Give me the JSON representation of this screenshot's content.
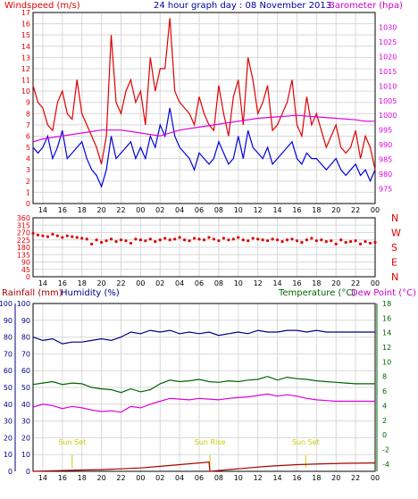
{
  "header": {
    "windspeed_label": "Windspeed (m/s)",
    "title": "24 hour graph day : 08 November 2013",
    "barometer_label": "Barometer (hpa)"
  },
  "colors": {
    "frame": "#000000",
    "grid": "#d8d8d8",
    "red": "#e00000",
    "blue": "#0000dd",
    "magenta": "#dd00dd",
    "green": "#006600",
    "darkred": "#aa0000",
    "navy": "#000080",
    "sun": "#cccc00"
  },
  "x_axis": {
    "ticks": [
      "14",
      "16",
      "18",
      "20",
      "22",
      "00",
      "02",
      "04",
      "06",
      "08",
      "10",
      "12",
      "14",
      "16",
      "18",
      "20",
      "22",
      "00"
    ]
  },
  "bottom_labels": {
    "rainfall": "Rainfall (mm)",
    "humidity": "Humidity (%)",
    "temperature": "Temperature (°C)",
    "dewpoint": "Dew Point (°C)"
  },
  "compass": [
    "N",
    "W",
    "S",
    "E",
    "N"
  ],
  "sun_events": [
    {
      "label": "Sun Set",
      "x": 17
    },
    {
      "label": "Sun Rise",
      "x": 31.1
    },
    {
      "label": "Sun Set",
      "x": 40.9
    }
  ],
  "chart_data": [
    {
      "type": "line",
      "x_range": [
        13,
        48
      ],
      "y_left": {
        "label": "Windspeed (m/s)",
        "range": [
          0,
          17
        ],
        "ticks": [
          0,
          1,
          2,
          3,
          4,
          5,
          6,
          7,
          8,
          9,
          10,
          11,
          12,
          13,
          14,
          15,
          16,
          17
        ]
      },
      "y_right": {
        "label": "Barometer (hpa)",
        "range": [
          970,
          1035
        ],
        "ticks": [
          975,
          980,
          985,
          990,
          995,
          1000,
          1005,
          1010,
          1015,
          1020,
          1025,
          1030
        ]
      },
      "series": [
        {
          "name": "Gust",
          "axis": "left",
          "color": "red",
          "x": [
            13,
            13.5,
            14,
            14.5,
            15,
            15.5,
            16,
            16.5,
            17,
            17.5,
            18,
            18.5,
            19,
            19.5,
            20,
            20.5,
            21,
            21.5,
            22,
            22.5,
            23,
            23.5,
            24,
            24.5,
            25,
            25.5,
            26,
            26.5,
            27,
            27.5,
            28,
            28.5,
            29,
            29.5,
            30,
            30.5,
            31,
            31.5,
            32,
            32.5,
            33,
            33.5,
            34,
            34.5,
            35,
            35.5,
            36,
            36.5,
            37,
            37.5,
            38,
            38.5,
            39,
            39.5,
            40,
            40.5,
            41,
            41.5,
            42,
            42.5,
            43,
            43.5,
            44,
            44.5,
            45,
            45.5,
            46,
            46.5,
            47,
            47.5,
            48
          ],
          "y": [
            10.5,
            9,
            8.5,
            7,
            6.5,
            9,
            10,
            8,
            7.5,
            11,
            8,
            7,
            6,
            5,
            3.5,
            6,
            15,
            9,
            8,
            10,
            11,
            9,
            10,
            7,
            13,
            10,
            12,
            12,
            16.5,
            10,
            9,
            8.5,
            8,
            7,
            9.5,
            8,
            7,
            6.5,
            10.5,
            8,
            6,
            9.5,
            11,
            7,
            13,
            11,
            8,
            9,
            10.5,
            6.5,
            7,
            8,
            9,
            11,
            7,
            6,
            9.5,
            7,
            8,
            6.5,
            5,
            6,
            7,
            5,
            4.5,
            5,
            6.5,
            4,
            6,
            5,
            3
          ]
        },
        {
          "name": "Wind speed",
          "axis": "left",
          "color": "blue",
          "x": [
            13,
            13.5,
            14,
            14.5,
            15,
            15.5,
            16,
            16.5,
            17,
            17.5,
            18,
            18.5,
            19,
            19.5,
            20,
            20.5,
            21,
            21.5,
            22,
            22.5,
            23,
            23.5,
            24,
            24.5,
            25,
            25.5,
            26,
            26.5,
            27,
            27.5,
            28,
            28.5,
            29,
            29.5,
            30,
            30.5,
            31,
            31.5,
            32,
            32.5,
            33,
            33.5,
            34,
            34.5,
            35,
            35.5,
            36,
            36.5,
            37,
            37.5,
            38,
            38.5,
            39,
            39.5,
            40,
            40.5,
            41,
            41.5,
            42,
            42.5,
            43,
            43.5,
            44,
            44.5,
            45,
            45.5,
            46,
            46.5,
            47,
            47.5,
            48
          ],
          "y": [
            5,
            4.5,
            5,
            6,
            4,
            5,
            6.5,
            4,
            4.5,
            5,
            5.5,
            4,
            3,
            2.5,
            1.5,
            3,
            6,
            4,
            4.5,
            5,
            5.5,
            4,
            5,
            4,
            6,
            5,
            7,
            6,
            8.5,
            6,
            5,
            4.5,
            4,
            3,
            4.5,
            4,
            3.5,
            4,
            5.5,
            4.5,
            3.5,
            4,
            6,
            4,
            6.5,
            5,
            4.5,
            4,
            5,
            3.5,
            4,
            4.5,
            5,
            5.5,
            4,
            3.5,
            4.5,
            4,
            4,
            3.5,
            3,
            3.5,
            4,
            3,
            2.5,
            3,
            3.5,
            2.5,
            3,
            2,
            3
          ]
        },
        {
          "name": "Barometer",
          "axis": "right",
          "color": "magenta",
          "x": [
            13,
            14,
            16,
            18,
            20,
            22,
            24,
            26,
            28,
            30,
            32,
            34,
            36,
            38,
            40,
            42,
            44,
            46,
            47,
            48
          ],
          "y": [
            991,
            992,
            993,
            994,
            995,
            995,
            994,
            993,
            995,
            996,
            997,
            998,
            999,
            999.5,
            1000,
            999.5,
            999,
            998.5,
            998,
            998
          ]
        }
      ]
    },
    {
      "type": "scatter",
      "title": "Wind direction",
      "x_range": [
        13,
        48
      ],
      "y_left": {
        "range": [
          0,
          360
        ],
        "ticks": [
          0,
          45,
          90,
          135,
          180,
          225,
          270,
          315,
          360
        ]
      },
      "y_right": {
        "labels": [
          "N",
          "W",
          "S",
          "E",
          "N"
        ]
      },
      "series": [
        {
          "name": "Direction",
          "color": "red",
          "x": [
            13,
            13.5,
            14,
            14.5,
            15,
            15.5,
            16,
            16.5,
            17,
            17.5,
            18,
            18.5,
            19,
            19.5,
            20,
            20.5,
            21,
            21.5,
            22,
            22.5,
            23,
            23.5,
            24,
            24.5,
            25,
            25.5,
            26,
            26.5,
            27,
            27.5,
            28,
            28.5,
            29,
            29.5,
            30,
            30.5,
            31,
            31.5,
            32,
            32.5,
            33,
            33.5,
            34,
            34.5,
            35,
            35.5,
            36,
            36.5,
            37,
            37.5,
            38,
            38.5,
            39,
            39.5,
            40,
            40.5,
            41,
            41.5,
            42,
            42.5,
            43,
            43.5,
            44,
            44.5,
            45,
            45.5,
            46,
            46.5,
            47,
            47.5,
            48
          ],
          "y": [
            265,
            255,
            250,
            245,
            260,
            250,
            240,
            250,
            245,
            240,
            235,
            230,
            200,
            225,
            210,
            220,
            230,
            215,
            225,
            220,
            205,
            230,
            225,
            220,
            230,
            215,
            225,
            235,
            225,
            230,
            240,
            225,
            220,
            235,
            230,
            225,
            240,
            230,
            220,
            235,
            225,
            230,
            240,
            225,
            220,
            235,
            230,
            225,
            220,
            230,
            225,
            215,
            225,
            230,
            220,
            210,
            225,
            235,
            220,
            225,
            215,
            220,
            200,
            225,
            210,
            215,
            220,
            200,
            215,
            205,
            210
          ]
        }
      ]
    },
    {
      "type": "line",
      "x_range": [
        13,
        48
      ],
      "y_left": {
        "label": "Humidity (%)",
        "range": [
          0,
          100
        ],
        "ticks": [
          0,
          10,
          20,
          30,
          40,
          50,
          60,
          70,
          80,
          90,
          100
        ]
      },
      "y_left_outer": {
        "label": "Rainfall (mm)",
        "range": [
          0,
          100
        ],
        "ticks": [
          0,
          10,
          20,
          30,
          40,
          50,
          60,
          70,
          80,
          90,
          100
        ]
      },
      "y_right": {
        "label": "Temperature (°C)",
        "range": [
          -5,
          18
        ],
        "ticks": [
          -4,
          -2,
          0,
          2,
          4,
          6,
          8,
          10,
          12,
          14,
          16,
          18
        ]
      },
      "series": [
        {
          "name": "Humidity",
          "axis": "left",
          "color": "navy",
          "x": [
            13,
            14,
            15,
            16,
            17,
            18,
            19,
            20,
            21,
            22,
            23,
            24,
            25,
            26,
            27,
            28,
            29,
            30,
            31,
            32,
            33,
            34,
            35,
            36,
            37,
            38,
            39,
            40,
            41,
            42,
            43,
            44,
            45,
            46,
            47,
            48
          ],
          "y": [
            80,
            78,
            79,
            76,
            77,
            77,
            78,
            79,
            78,
            80,
            83,
            82,
            84,
            83,
            84,
            82,
            83,
            82,
            83,
            81,
            82,
            83,
            82,
            84,
            83,
            83,
            84,
            84,
            83,
            84,
            83,
            83,
            83,
            83,
            83,
            83
          ]
        },
        {
          "name": "Temperature",
          "axis": "right",
          "color": "green",
          "x": [
            13,
            14,
            15,
            16,
            17,
            18,
            19,
            20,
            21,
            22,
            23,
            24,
            25,
            26,
            27,
            28,
            29,
            30,
            31,
            32,
            33,
            34,
            35,
            36,
            37,
            38,
            39,
            40,
            41,
            42,
            43,
            44,
            45,
            46,
            47,
            48
          ],
          "y": [
            6.9,
            7.1,
            7.3,
            6.9,
            7.1,
            7.0,
            6.5,
            6.3,
            6.2,
            5.8,
            6.3,
            5.9,
            6.2,
            7.0,
            7.5,
            7.3,
            7.4,
            7.6,
            7.3,
            7.2,
            7.4,
            7.3,
            7.5,
            7.6,
            8.0,
            7.5,
            7.9,
            7.7,
            7.6,
            7.4,
            7.3,
            7.2,
            7.1,
            7.0,
            7.0,
            7.0
          ]
        },
        {
          "name": "Dew point",
          "axis": "right",
          "color": "magenta",
          "x": [
            13,
            14,
            15,
            16,
            17,
            18,
            19,
            20,
            21,
            22,
            23,
            24,
            25,
            26,
            27,
            28,
            29,
            30,
            31,
            32,
            33,
            34,
            35,
            36,
            37,
            38,
            39,
            40,
            41,
            42,
            43,
            44,
            45,
            46,
            47,
            48
          ],
          "y": [
            3.8,
            4.2,
            4.0,
            3.6,
            3.9,
            3.7,
            3.4,
            3.2,
            3.3,
            3.1,
            3.9,
            3.7,
            4.2,
            4.6,
            5.0,
            4.9,
            4.8,
            5.0,
            4.9,
            4.8,
            5.0,
            5.1,
            5.2,
            5.4,
            5.6,
            5.3,
            5.5,
            5.3,
            5.0,
            4.8,
            4.7,
            4.6,
            4.6,
            4.6,
            4.6,
            4.6
          ]
        },
        {
          "name": "Rainfall",
          "axis": "left_outer",
          "color": "darkred",
          "x": [
            13,
            16,
            18,
            20,
            22,
            24,
            26,
            28,
            30,
            31,
            31.1,
            33,
            35,
            37,
            40,
            43,
            45,
            48
          ],
          "y": [
            0,
            0.5,
            0.8,
            1.0,
            1.5,
            2.0,
            3.0,
            4.0,
            5.0,
            5.5,
            0,
            1.0,
            2.0,
            3.0,
            4.0,
            4.5,
            4.8,
            5.0
          ]
        }
      ]
    }
  ]
}
